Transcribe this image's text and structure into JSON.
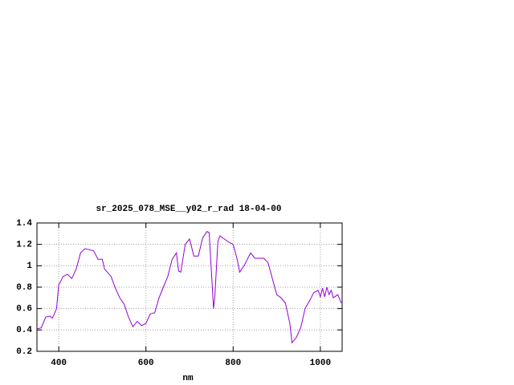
{
  "chart_data": {
    "type": "line",
    "title": "sr_2025_078_MSE__y02_r_rad 18-04-00",
    "x_label": "nm",
    "xlim": [
      350,
      1050
    ],
    "xticks": [
      400,
      600,
      800,
      1000
    ],
    "ylim": [
      0.2,
      1.4
    ],
    "yticks": [
      0.2,
      0.4,
      0.6,
      0.8,
      1,
      1.2,
      1.4
    ],
    "grid": true,
    "series": [
      {
        "color": "#9400d3",
        "x": [
          350,
          360,
          370,
          380,
          385,
          390,
          395,
          400,
          410,
          420,
          430,
          440,
          450,
          460,
          470,
          480,
          490,
          500,
          505,
          520,
          530,
          540,
          550,
          560,
          570,
          580,
          590,
          600,
          610,
          620,
          630,
          640,
          650,
          660,
          670,
          675,
          680,
          690,
          700,
          710,
          720,
          730,
          740,
          745,
          752,
          755,
          758,
          765,
          770,
          780,
          790,
          800,
          810,
          815,
          825,
          840,
          850,
          860,
          870,
          880,
          890,
          900,
          910,
          920,
          930,
          935,
          945,
          955,
          965,
          975,
          985,
          995,
          1000,
          1005,
          1010,
          1015,
          1020,
          1025,
          1030,
          1040,
          1048
        ],
        "values": [
          0.41,
          0.42,
          0.52,
          0.53,
          0.51,
          0.55,
          0.6,
          0.82,
          0.9,
          0.92,
          0.88,
          0.97,
          1.12,
          1.16,
          1.15,
          1.14,
          1.06,
          1.06,
          0.97,
          0.9,
          0.79,
          0.7,
          0.64,
          0.52,
          0.43,
          0.48,
          0.44,
          0.46,
          0.55,
          0.56,
          0.7,
          0.8,
          0.9,
          1.06,
          1.12,
          0.95,
          0.94,
          1.2,
          1.25,
          1.09,
          1.09,
          1.26,
          1.32,
          1.31,
          0.82,
          0.6,
          0.71,
          1.23,
          1.28,
          1.25,
          1.22,
          1.2,
          1.05,
          0.94,
          1.0,
          1.12,
          1.07,
          1.07,
          1.07,
          1.03,
          0.88,
          0.73,
          0.7,
          0.65,
          0.46,
          0.28,
          0.33,
          0.42,
          0.6,
          0.67,
          0.75,
          0.77,
          0.71,
          0.79,
          0.71,
          0.8,
          0.73,
          0.77,
          0.7,
          0.73,
          0.65
        ]
      }
    ]
  }
}
